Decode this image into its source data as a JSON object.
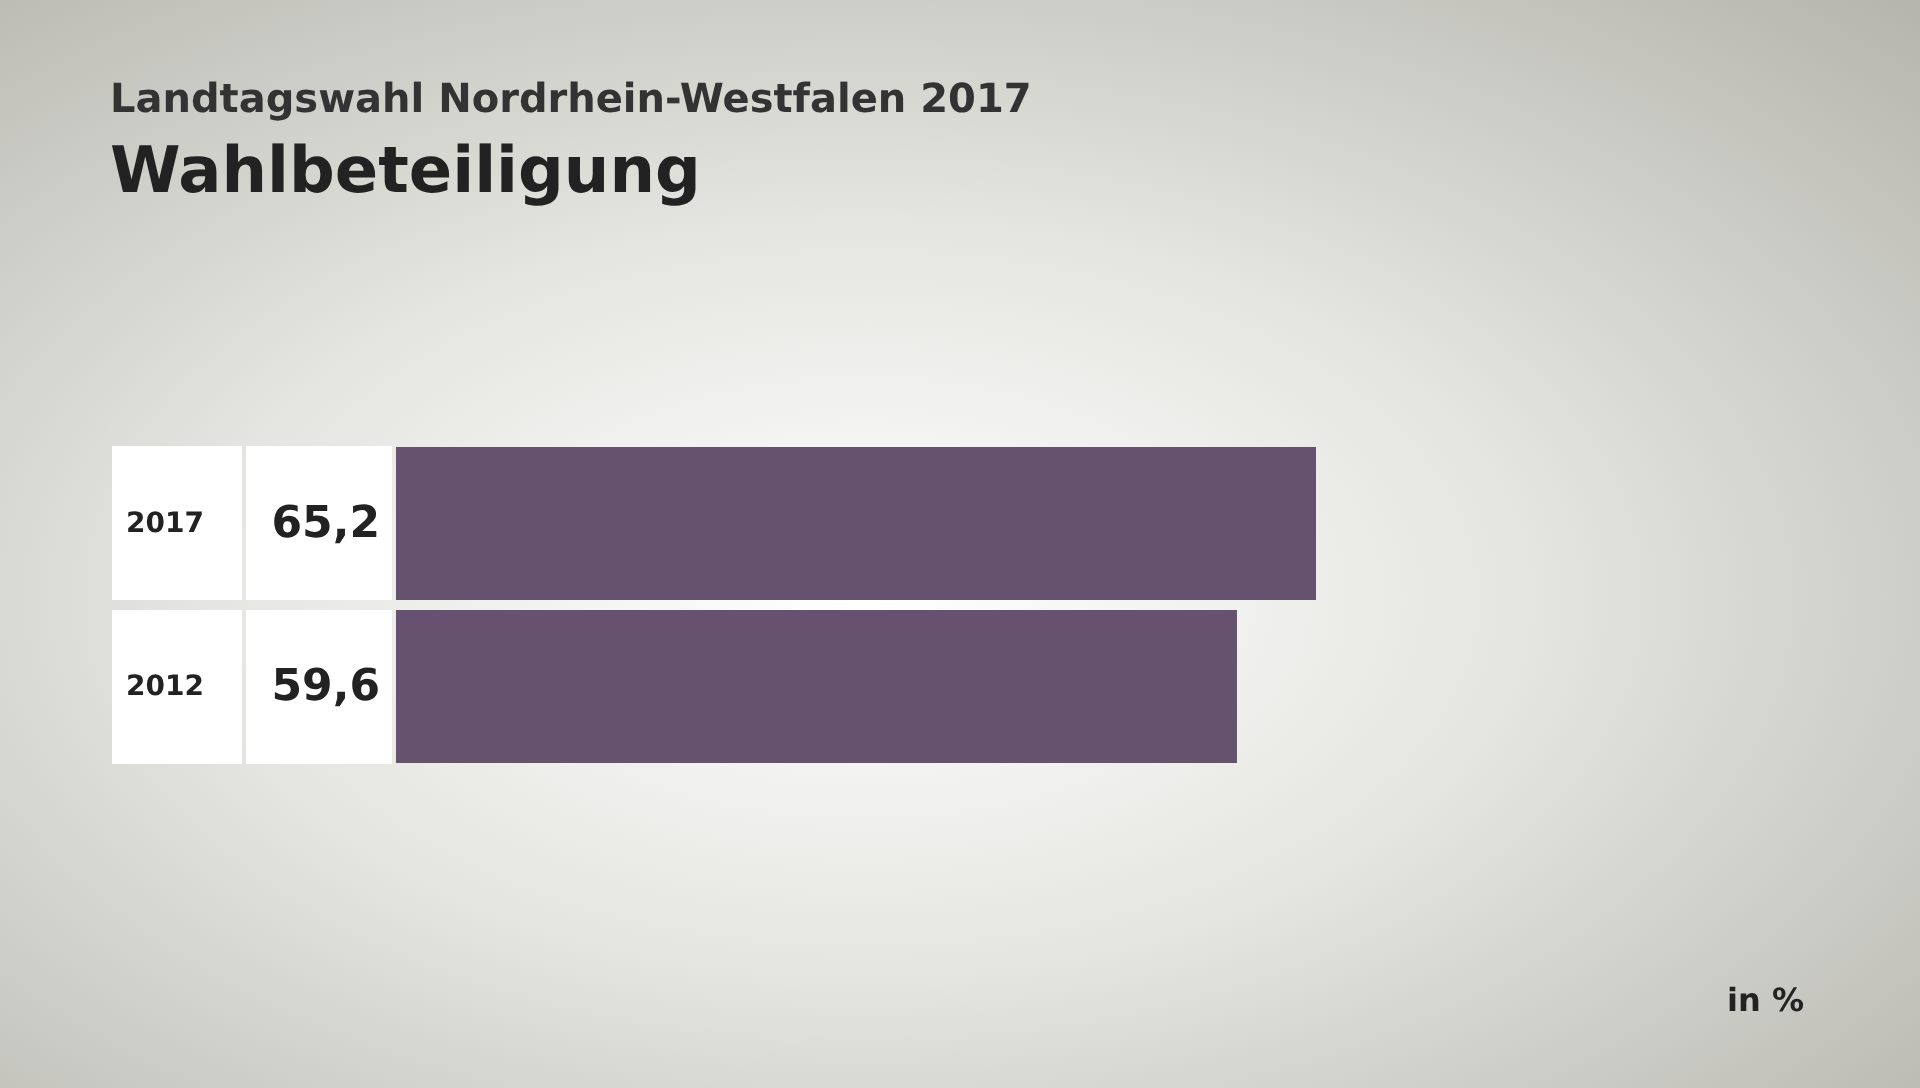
{
  "chart_data": {
    "type": "bar",
    "orientation": "horizontal",
    "title": "Landtagswahl Nordrhein-Westfalen 2017",
    "subtitle": "Wahlbeteiligung",
    "categories": [
      "2017",
      "2012"
    ],
    "values": [
      65.2,
      59.6
    ],
    "color": "#66526e",
    "value_labels": [
      "65,2",
      "59,6"
    ],
    "annotations": [
      "in %"
    ]
  }
}
